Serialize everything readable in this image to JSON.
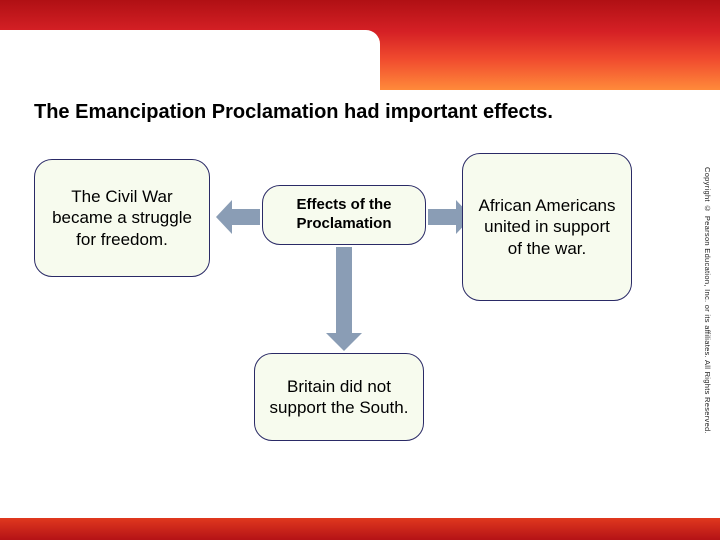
{
  "header": {
    "gradient_colors": [
      "#b01014",
      "#d52025",
      "#f04a2e",
      "#ff8a3a"
    ]
  },
  "footer": {
    "gradient_colors": [
      "#e0381e",
      "#b41216"
    ]
  },
  "copyright_text": "Copyright © Pearson Education, Inc. or its affiliates. All Rights Reserved.",
  "title": "The Emancipation Proclamation had important effects.",
  "diagram": {
    "type": "flowchart",
    "box_fill": "#f7fbee",
    "box_border": "#2a2a66",
    "arrow_color": "#8a9db5",
    "center": {
      "label": "Effects of the Proclamation"
    },
    "left": {
      "label": "The Civil War became a struggle for freedom."
    },
    "right": {
      "label": "African Americans united in support of the war."
    },
    "bottom": {
      "label": "Britain did not support the South."
    }
  }
}
